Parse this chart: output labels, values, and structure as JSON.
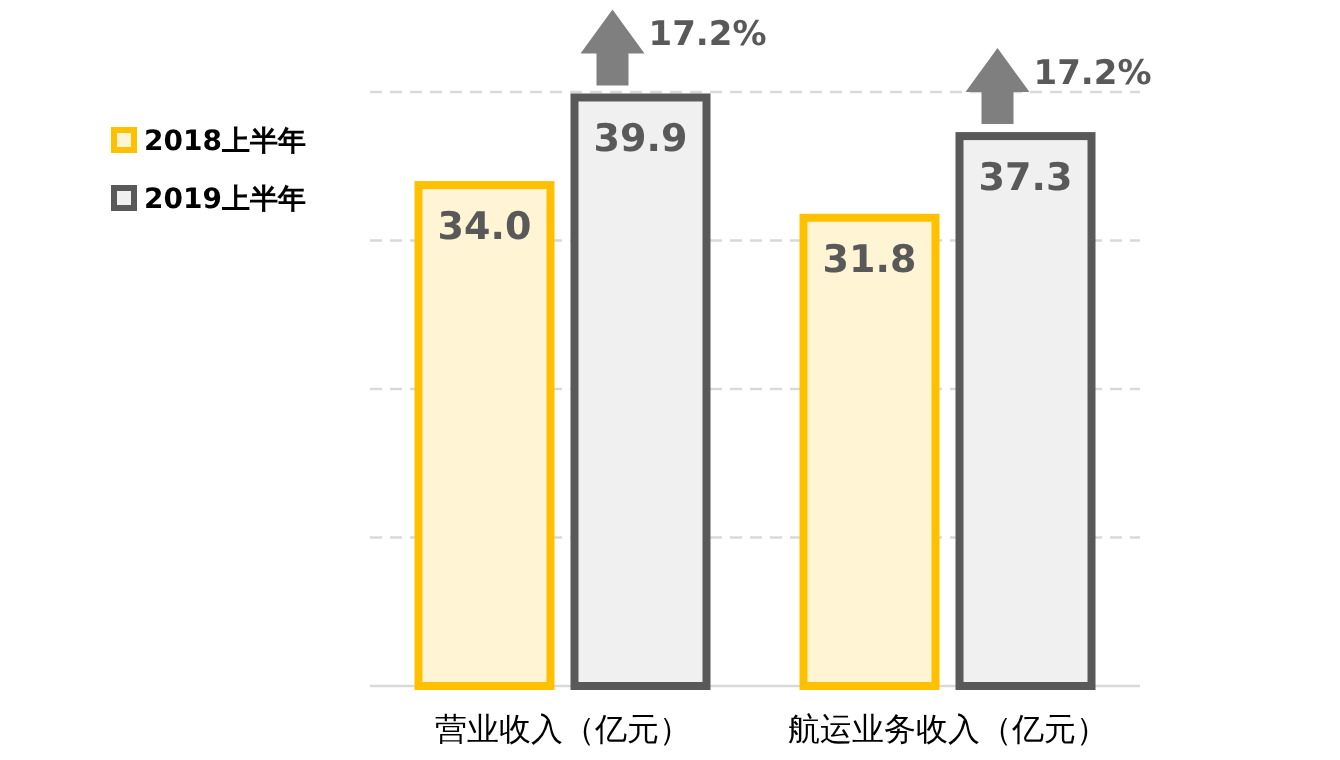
{
  "chart_data": {
    "type": "bar",
    "categories": [
      "营业收入（亿元）",
      "航运业务收入（亿元）"
    ],
    "series": [
      {
        "name": "2018上半年",
        "color": "#ffc000",
        "values": [
          34.0,
          31.8
        ],
        "value_labels": [
          "34.0",
          "31.8"
        ]
      },
      {
        "name": "2019上半年",
        "color": "#595959",
        "values": [
          39.9,
          37.3
        ],
        "value_labels": [
          "39.9",
          "37.3"
        ]
      }
    ],
    "ylim": [
      0,
      40
    ],
    "grid": "y",
    "legend": "left",
    "tick_labels": "x",
    "annotations": [
      "17.2%",
      "17.2%"
    ]
  }
}
